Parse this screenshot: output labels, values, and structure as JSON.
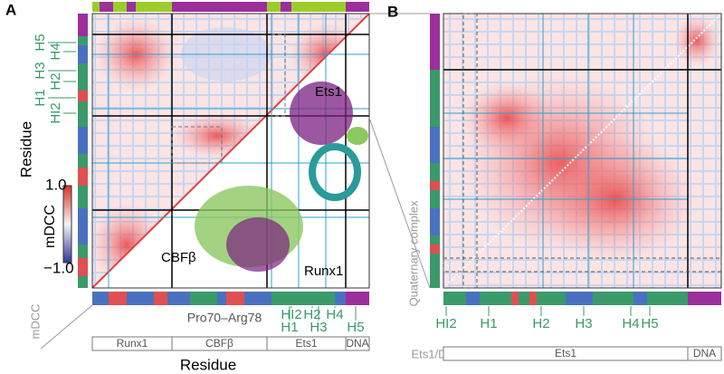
{
  "panel_a": {
    "label": "A",
    "left_helices": [
      "H5",
      "H4",
      "H3",
      "H2",
      "H1",
      "HI2"
    ],
    "y_axis_title": "Residue",
    "colorbar": {
      "title": "mDCC",
      "max": "1.0",
      "min": "−1.0"
    },
    "structure_labels": [
      "Ets1",
      "CBFβ",
      "Runx1"
    ],
    "pro_label": "Pro70–Arg78",
    "bottom_helices": [
      "HI2",
      "H1",
      "H2",
      "H3",
      "H4",
      "H5"
    ],
    "bar_label": "mDCC",
    "domains": [
      "Runx1",
      "CBFβ",
      "Ets1",
      "DNA"
    ],
    "x_axis_title": "Residue"
  },
  "panel_b": {
    "label": "B",
    "side_label": "Quaternary complex",
    "bar_label": "Ets1/DNA",
    "bottom_helices": [
      "HI2",
      "H1",
      "H2",
      "H3",
      "H4",
      "H5"
    ],
    "domains": [
      "Ets1",
      "DNA"
    ]
  }
}
